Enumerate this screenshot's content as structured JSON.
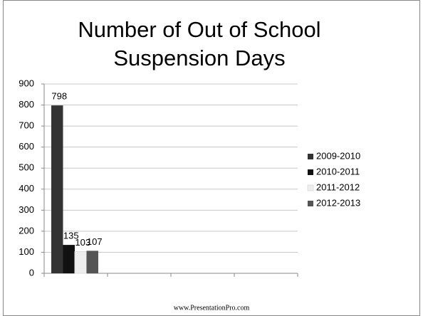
{
  "chart_data": {
    "type": "bar",
    "title": "Number of Out of School Suspension Days",
    "categories": [
      null,
      null,
      null,
      null
    ],
    "series": [
      {
        "name": "2009-2010",
        "color": "#333333",
        "values": [
          798,
          null,
          null,
          null
        ]
      },
      {
        "name": "2010-2011",
        "color": "#111111",
        "values": [
          135,
          null,
          null,
          null
        ]
      },
      {
        "name": "2011-2012",
        "color": "#eeeeee",
        "values": [
          103,
          null,
          null,
          null
        ]
      },
      {
        "name": "2012-2013",
        "color": "#555555",
        "values": [
          107,
          null,
          null,
          null
        ]
      }
    ],
    "ylim": [
      0,
      900
    ],
    "yticks": [
      0,
      100,
      200,
      300,
      400,
      500,
      600,
      700,
      800,
      900
    ],
    "grid": true,
    "legend": "right",
    "footer": "www.PresentationPro.com"
  }
}
